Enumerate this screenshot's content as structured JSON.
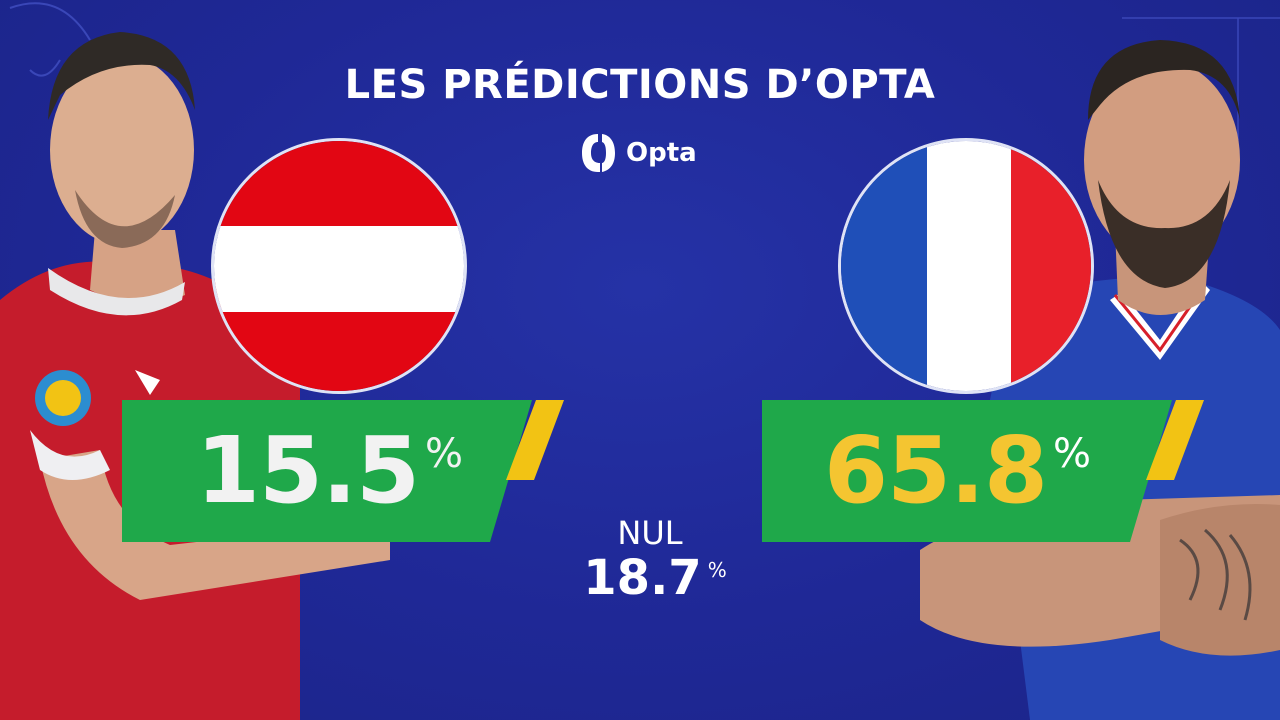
{
  "title": "LES PRÉDICTIONS D’OPTA",
  "brand": {
    "name": "Opta",
    "icon": "opta-logo-icon"
  },
  "teams": [
    {
      "flag": "austria-flag",
      "win_value": "15.5",
      "percent_sign": "%",
      "value_color": "#f2f2f2",
      "flag_colors": [
        "#e20613",
        "#ffffff",
        "#e20613"
      ]
    },
    {
      "flag": "france-flag",
      "win_value": "65.8",
      "percent_sign": "%",
      "value_color": "#f4c531",
      "flag_colors": [
        "#1f4fb8",
        "#ffffff",
        "#e8202a"
      ]
    }
  ],
  "draw": {
    "label": "NUL",
    "value": "18.7",
    "percent_sign": "%"
  },
  "colors": {
    "background": "#1f2896",
    "bar_green": "#1fa84a",
    "accent_yellow": "#f2c314"
  }
}
